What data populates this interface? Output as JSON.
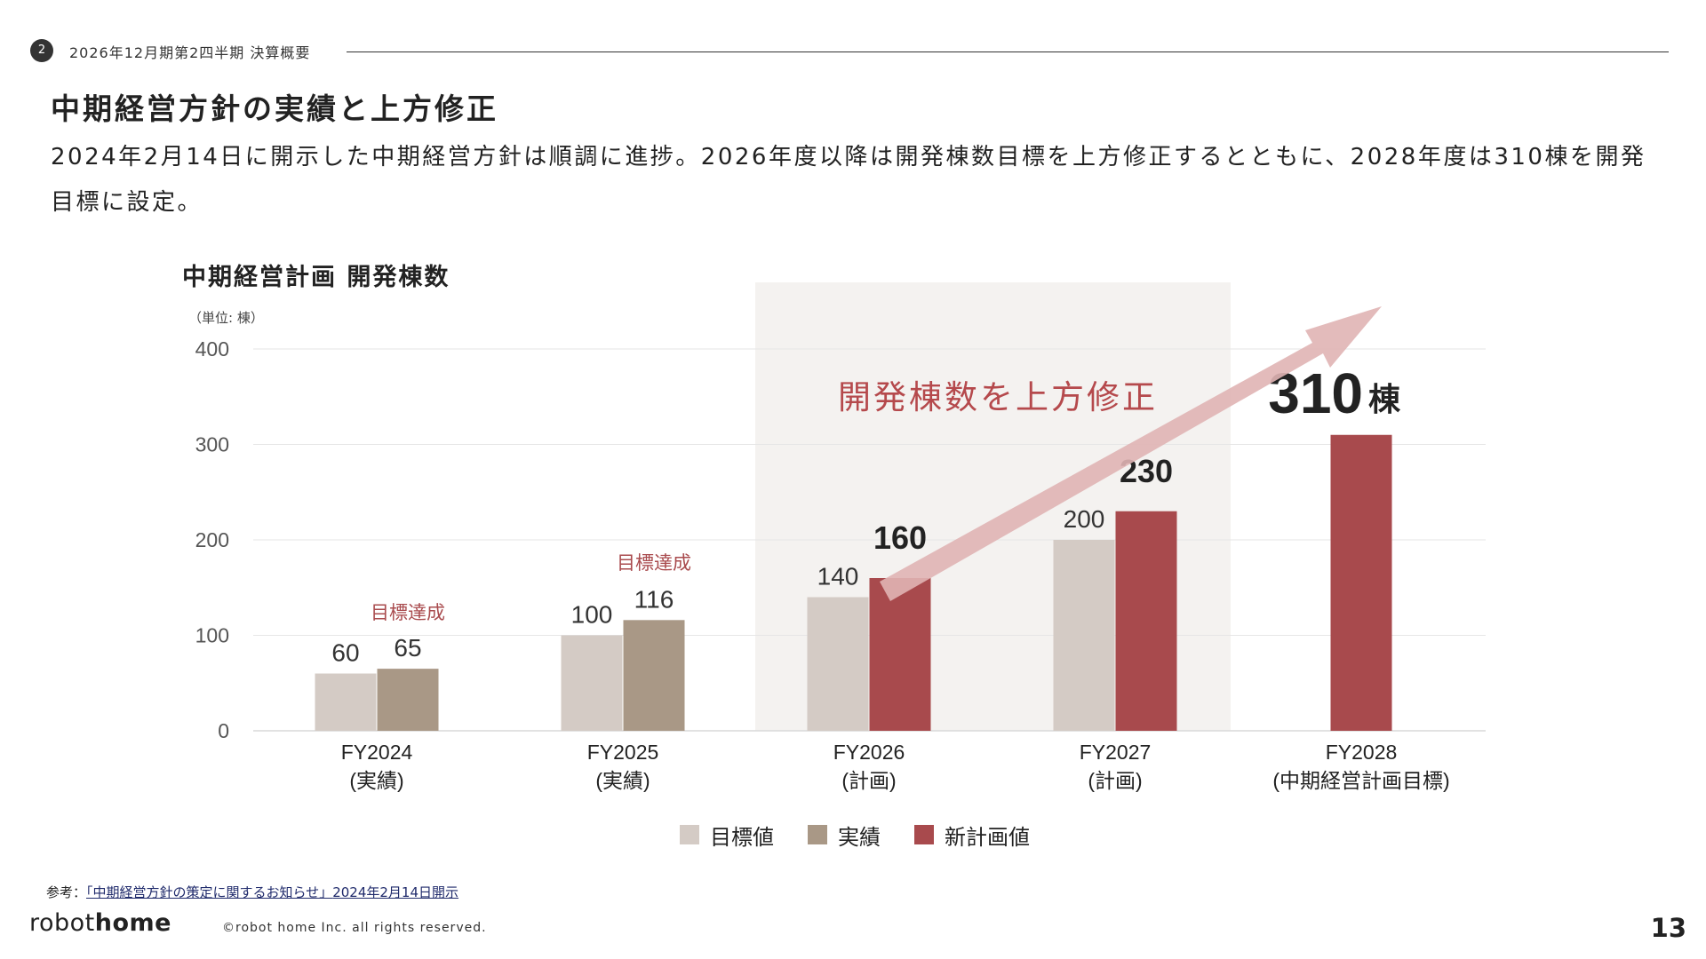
{
  "header": {
    "section_number": "2",
    "section_label": "2026年12月期第2四半期 決算概要"
  },
  "title": "中期経営方針の実績と上方修正",
  "description": "2024年2月14日に開示した中期経営方針は順調に進捗。2026年度以降は開発棟数目標を上方修正するとともに、2028年度は310棟を開発目標に設定。",
  "chart_title": "中期経営計画 開発棟数",
  "colors": {
    "target": "#d4cbc5",
    "actual": "#a99886",
    "new_plan": "#a84a4d",
    "highlight_bg": "#f4f2f0",
    "arrow": "#e0b4b4",
    "accent_text": "#b5494c"
  },
  "chart_data": {
    "type": "bar",
    "unit": "（単位: 棟）",
    "ylim": [
      0,
      400
    ],
    "yticks": [
      "0",
      "100",
      "200",
      "300",
      "400"
    ],
    "categories": [
      {
        "fy": "FY2024",
        "sub": "(実績)"
      },
      {
        "fy": "FY2025",
        "sub": "(実績)"
      },
      {
        "fy": "FY2026",
        "sub": "(計画)"
      },
      {
        "fy": "FY2027",
        "sub": "(計画)"
      },
      {
        "fy": "FY2028",
        "sub": "(中期経営計画目標)"
      }
    ],
    "series": [
      {
        "name": "目標値",
        "values": [
          60,
          100,
          140,
          200,
          null
        ],
        "labels": [
          "60",
          "100",
          "140",
          "200",
          ""
        ]
      },
      {
        "name": "実績",
        "values": [
          65,
          116,
          null,
          null,
          null
        ],
        "labels": [
          "65",
          "116",
          "",
          "",
          ""
        ]
      },
      {
        "name": "新計画値",
        "values": [
          null,
          null,
          160,
          230,
          310
        ],
        "labels": [
          "",
          "",
          "160",
          "230",
          "310"
        ]
      }
    ],
    "final_value_unit": "棟",
    "annotations": {
      "achieved": "目標達成",
      "revision": "開発棟数を上方修正"
    },
    "grid": true,
    "legend": "bottom-center"
  },
  "footer": {
    "ref_prefix": "参考：",
    "ref_link": "「中期経営方針の策定に関するお知らせ」",
    "ref_suffix": "2024年2月14日開示",
    "logo_robot": "robot",
    "logo_home": "home",
    "copyright": "©robot home Inc. all rights reserved.",
    "page": "13"
  }
}
